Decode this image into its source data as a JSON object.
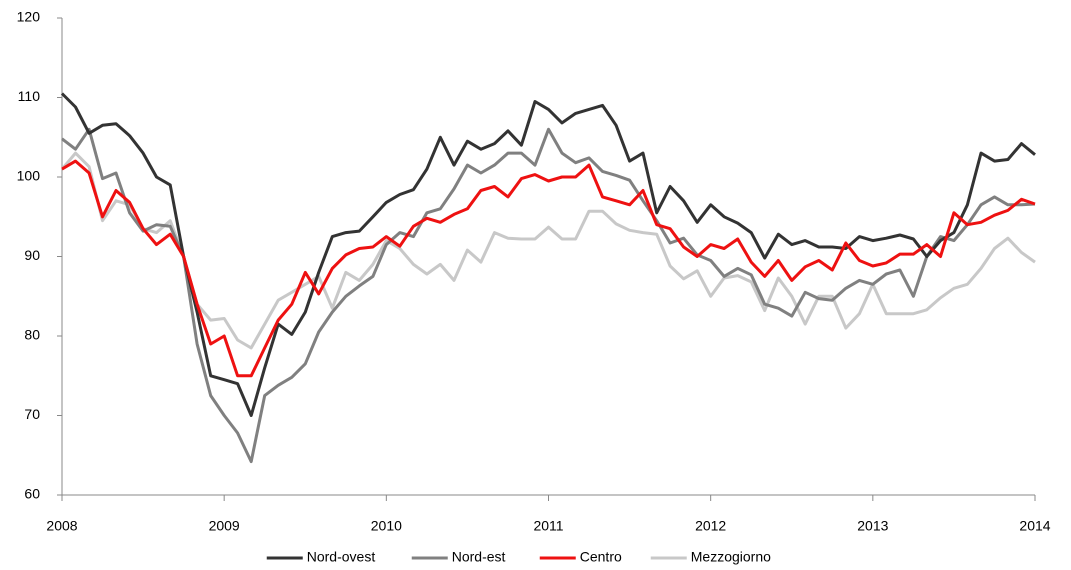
{
  "chart_data": {
    "type": "line",
    "x": [
      2008,
      2008.083,
      2008.167,
      2008.25,
      2008.333,
      2008.417,
      2008.5,
      2008.583,
      2008.667,
      2008.75,
      2008.833,
      2008.917,
      2009,
      2009.083,
      2009.167,
      2009.25,
      2009.333,
      2009.417,
      2009.5,
      2009.583,
      2009.667,
      2009.75,
      2009.833,
      2009.917,
      2010,
      2010.083,
      2010.167,
      2010.25,
      2010.333,
      2010.417,
      2010.5,
      2010.583,
      2010.667,
      2010.75,
      2010.833,
      2010.917,
      2011,
      2011.083,
      2011.167,
      2011.25,
      2011.333,
      2011.417,
      2011.5,
      2011.583,
      2011.667,
      2011.75,
      2011.833,
      2011.917,
      2012,
      2012.083,
      2012.167,
      2012.25,
      2012.333,
      2012.417,
      2012.5,
      2012.583,
      2012.667,
      2012.75,
      2012.833,
      2012.917,
      2013,
      2013.083,
      2013.167,
      2013.25,
      2013.333,
      2013.417,
      2013.5,
      2013.583,
      2013.667,
      2013.75,
      2013.833,
      2013.917,
      2014
    ],
    "series": [
      {
        "name": "Nord-ovest",
        "color": "#333333",
        "values": [
          110.5,
          108.8,
          105.5,
          106.5,
          106.7,
          105.2,
          103,
          100,
          99,
          90,
          83,
          75,
          74.5,
          74,
          70,
          76,
          81.5,
          80.2,
          83,
          88,
          92.5,
          93,
          93.2,
          95,
          96.8,
          97.8,
          98.4,
          101,
          105,
          101.5,
          104.5,
          103.5,
          104.2,
          105.8,
          104,
          109.5,
          108.5,
          106.8,
          108,
          108.5,
          109,
          106.5,
          102,
          103,
          95.5,
          98.8,
          97,
          94.3,
          96.5,
          95,
          94.2,
          93,
          89.8,
          92.8,
          91.5,
          92,
          91.2,
          91.2,
          91,
          92.5,
          92,
          92.3,
          92.7,
          92.2,
          90,
          92,
          93,
          96.5,
          103,
          102,
          102.2,
          104.2,
          102.8
        ]
      },
      {
        "name": "Nord-est",
        "color": "#808080",
        "values": [
          104.8,
          103.5,
          106,
          99.8,
          100.5,
          95.5,
          93.2,
          94,
          93.8,
          90,
          79,
          72.5,
          70,
          67.8,
          64.2,
          72.5,
          73.8,
          74.8,
          76.5,
          80.5,
          83,
          85,
          86.3,
          87.5,
          91.5,
          93,
          92.5,
          95.5,
          96,
          98.5,
          101.5,
          100.5,
          101.5,
          103,
          103,
          101.5,
          106,
          103,
          101.8,
          102.4,
          100.7,
          100.2,
          99.6,
          97,
          94.5,
          91.7,
          92.3,
          90.2,
          89.5,
          87.5,
          88.5,
          87.7,
          84,
          83.5,
          82.5,
          85.5,
          84.7,
          84.5,
          86,
          87,
          86.5,
          87.8,
          88.3,
          85,
          90,
          92.5,
          92,
          94,
          96.5,
          97.5,
          96.5,
          96.5,
          96.6
        ]
      },
      {
        "name": "Centro",
        "color": "#ee1111",
        "values": [
          101,
          102,
          100.5,
          95,
          98.3,
          96.8,
          93.5,
          91.5,
          92.8,
          90,
          84,
          79,
          80,
          75,
          75,
          78.5,
          82,
          84,
          88,
          85.3,
          88.5,
          90.2,
          91,
          91.2,
          92.5,
          91.3,
          93.8,
          94.8,
          94.3,
          95.3,
          96,
          98.3,
          98.8,
          97.5,
          99.8,
          100.3,
          99.5,
          100,
          100,
          101.5,
          97.5,
          97,
          96.5,
          98.3,
          94,
          93.5,
          91.2,
          90,
          91.5,
          91,
          92.2,
          89.3,
          87.5,
          89.5,
          87,
          88.7,
          89.5,
          88.3,
          91.7,
          89.5,
          88.8,
          89.2,
          90.3,
          90.3,
          91.5,
          90,
          95.5,
          94,
          94.3,
          95.2,
          95.8,
          97.2,
          96.6
        ]
      },
      {
        "name": "Mezzogiorno",
        "color": "#c8c8c8",
        "values": [
          101,
          103,
          101.3,
          94.5,
          97,
          96.5,
          93.5,
          93,
          94.5,
          90,
          84,
          82,
          82.2,
          79.5,
          78.5,
          81.5,
          84.5,
          85.5,
          86.5,
          87.5,
          83.5,
          88,
          87,
          89,
          92,
          91,
          89,
          87.8,
          89,
          87,
          90.8,
          89.3,
          93,
          92.3,
          92.2,
          92.2,
          93.7,
          92.2,
          92.2,
          95.7,
          95.7,
          94.1,
          93.3,
          93,
          92.8,
          88.8,
          87.2,
          88.2,
          85,
          87.3,
          87.6,
          86.8,
          83.2,
          87.3,
          85,
          81.5,
          85,
          85,
          81,
          82.8,
          86.5,
          82.8,
          82.8,
          82.8,
          83.3,
          84.8,
          86,
          86.5,
          88.5,
          91,
          92.3,
          90.5,
          89.3
        ]
      }
    ],
    "xlim": [
      2008,
      2014
    ],
    "xticks": [
      2008,
      2009,
      2010,
      2011,
      2012,
      2013,
      2014
    ],
    "ylim": [
      60,
      120
    ],
    "yticks": [
      60,
      70,
      80,
      90,
      100,
      110,
      120
    ],
    "grid": false,
    "legend": "bottom"
  }
}
